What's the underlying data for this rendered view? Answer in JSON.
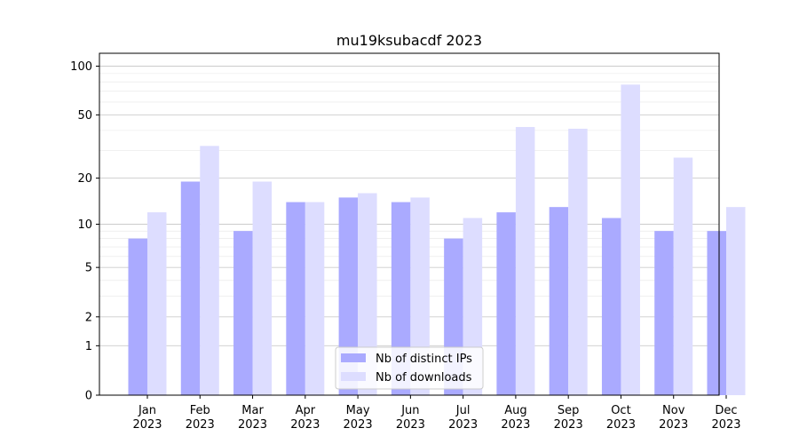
{
  "chart_data": {
    "type": "bar",
    "title": "mu19ksubacdf 2023",
    "xlabel": "",
    "ylabel": "",
    "y_scale": "symlog",
    "ylim": [
      0,
      120
    ],
    "y_ticks": [
      0,
      1,
      2,
      5,
      10,
      20,
      50,
      100
    ],
    "grid": true,
    "legend_position": "bottom-center",
    "categories": [
      [
        "Jan",
        "2023"
      ],
      [
        "Feb",
        "2023"
      ],
      [
        "Mar",
        "2023"
      ],
      [
        "Apr",
        "2023"
      ],
      [
        "May",
        "2023"
      ],
      [
        "Jun",
        "2023"
      ],
      [
        "Jul",
        "2023"
      ],
      [
        "Aug",
        "2023"
      ],
      [
        "Sep",
        "2023"
      ],
      [
        "Oct",
        "2023"
      ],
      [
        "Nov",
        "2023"
      ],
      [
        "Dec",
        "2023"
      ]
    ],
    "series": [
      {
        "name": "Nb of distinct IPs",
        "color": "#aaaaff",
        "values": [
          8,
          19,
          9,
          14,
          15,
          14,
          8,
          12,
          13,
          11,
          9,
          9
        ]
      },
      {
        "name": "Nb of downloads",
        "color": "#ddddff",
        "values": [
          12,
          32,
          19,
          14,
          16,
          15,
          11,
          42,
          41,
          77,
          27,
          13
        ]
      }
    ]
  }
}
